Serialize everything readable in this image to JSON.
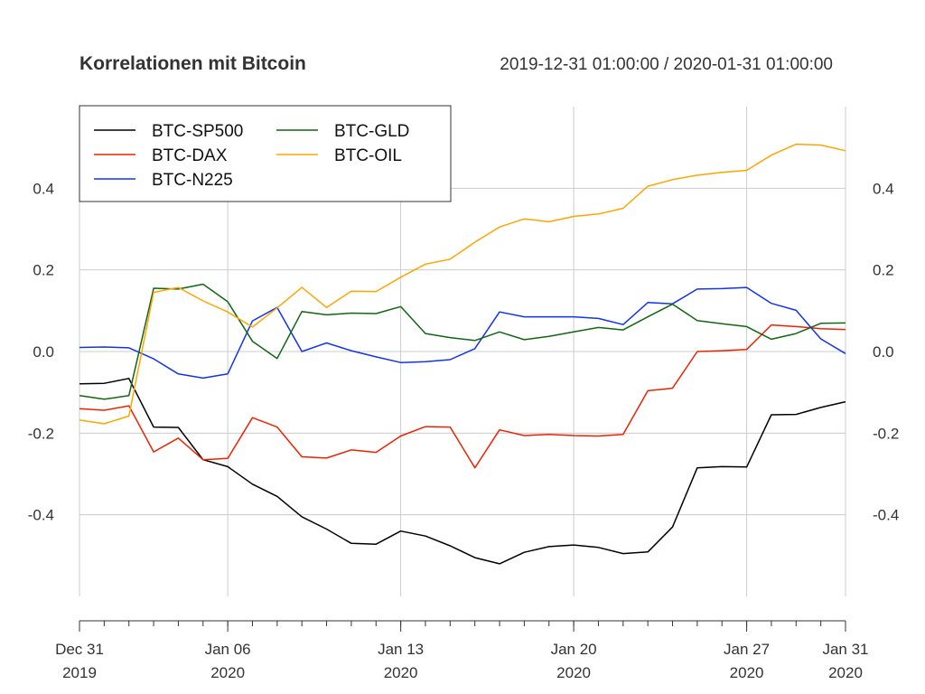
{
  "chart_data": {
    "type": "line",
    "title": "Korrelationen mit Bitcoin",
    "subtitle": "2019-12-31 01:00:00 / 2020-01-31 01:00:00",
    "x": [
      "2019-12-31",
      "2020-01-01",
      "2020-01-02",
      "2020-01-03",
      "2020-01-04",
      "2020-01-05",
      "2020-01-06",
      "2020-01-07",
      "2020-01-08",
      "2020-01-09",
      "2020-01-10",
      "2020-01-11",
      "2020-01-12",
      "2020-01-13",
      "2020-01-14",
      "2020-01-15",
      "2020-01-16",
      "2020-01-17",
      "2020-01-18",
      "2020-01-19",
      "2020-01-20",
      "2020-01-21",
      "2020-01-22",
      "2020-01-23",
      "2020-01-24",
      "2020-01-25",
      "2020-01-26",
      "2020-01-27",
      "2020-01-28",
      "2020-01-29",
      "2020-01-30",
      "2020-01-31"
    ],
    "xlim": [
      "2019-12-31",
      "2020-01-31"
    ],
    "ylim": [
      -0.6,
      0.6
    ],
    "x_ticks": [
      {
        "date": "2019-12-31",
        "line1": "Dec 31",
        "line2": "2019"
      },
      {
        "date": "2020-01-06",
        "line1": "Jan 06",
        "line2": "2020"
      },
      {
        "date": "2020-01-13",
        "line1": "Jan 13",
        "line2": "2020"
      },
      {
        "date": "2020-01-20",
        "line1": "Jan 20",
        "line2": "2020"
      },
      {
        "date": "2020-01-27",
        "line1": "Jan 27",
        "line2": "2020"
      },
      {
        "date": "2020-01-31",
        "line1": "Jan 31",
        "line2": "2020"
      }
    ],
    "y_ticks": [
      {
        "value": 0.4,
        "label": "0.4"
      },
      {
        "value": 0.2,
        "label": "0.2"
      },
      {
        "value": 0.0,
        "label": "0.0"
      },
      {
        "value": -0.2,
        "label": "-0.2"
      },
      {
        "value": -0.4,
        "label": "-0.4"
      }
    ],
    "grid": true,
    "legend_position": "top-left",
    "series": [
      {
        "name": "BTC-SP500",
        "color": "#000000",
        "values": [
          -0.079,
          -0.078,
          -0.066,
          -0.185,
          -0.186,
          -0.265,
          -0.282,
          -0.325,
          -0.355,
          -0.405,
          -0.435,
          -0.47,
          -0.472,
          -0.44,
          -0.452,
          -0.476,
          -0.505,
          -0.52,
          -0.492,
          -0.478,
          -0.474,
          -0.48,
          -0.495,
          -0.491,
          -0.43,
          -0.285,
          -0.282,
          -0.283,
          -0.155,
          -0.154,
          -0.137,
          -0.123
        ]
      },
      {
        "name": "BTC-DAX",
        "color": "#ee2200",
        "values": [
          -0.14,
          -0.144,
          -0.133,
          -0.246,
          -0.212,
          -0.265,
          -0.262,
          -0.162,
          -0.185,
          -0.258,
          -0.261,
          -0.241,
          -0.247,
          -0.207,
          -0.184,
          -0.185,
          -0.285,
          -0.192,
          -0.206,
          -0.203,
          -0.206,
          -0.207,
          -0.203,
          -0.096,
          -0.09,
          0.0,
          0.002,
          0.005,
          0.065,
          0.061,
          0.056,
          0.054
        ]
      },
      {
        "name": "BTC-N225",
        "color": "#1133ee",
        "values": [
          0.01,
          0.011,
          0.009,
          -0.018,
          -0.055,
          -0.065,
          -0.055,
          0.075,
          0.108,
          0.0,
          0.021,
          0.002,
          -0.013,
          -0.027,
          -0.025,
          -0.02,
          0.007,
          0.097,
          0.085,
          0.085,
          0.085,
          0.081,
          0.066,
          0.12,
          0.117,
          0.153,
          0.154,
          0.157,
          0.118,
          0.101,
          0.031,
          -0.005
        ]
      },
      {
        "name": "BTC-GLD",
        "color": "#116611",
        "values": [
          -0.108,
          -0.117,
          -0.108,
          0.155,
          0.153,
          0.165,
          0.122,
          0.025,
          -0.017,
          0.098,
          0.09,
          0.094,
          0.093,
          0.11,
          0.044,
          0.034,
          0.027,
          0.048,
          0.029,
          0.037,
          0.048,
          0.059,
          0.053,
          0.085,
          0.116,
          0.076,
          0.068,
          0.061,
          0.03,
          0.044,
          0.069,
          0.07
        ]
      },
      {
        "name": "BTC-OIL",
        "color": "#ffa500",
        "values": [
          -0.168,
          -0.177,
          -0.158,
          0.145,
          0.157,
          0.124,
          0.097,
          0.06,
          0.107,
          0.157,
          0.108,
          0.148,
          0.147,
          0.182,
          0.214,
          0.226,
          0.268,
          0.305,
          0.325,
          0.318,
          0.331,
          0.337,
          0.351,
          0.405,
          0.421,
          0.432,
          0.439,
          0.444,
          0.481,
          0.508,
          0.506,
          0.492
        ]
      }
    ]
  }
}
